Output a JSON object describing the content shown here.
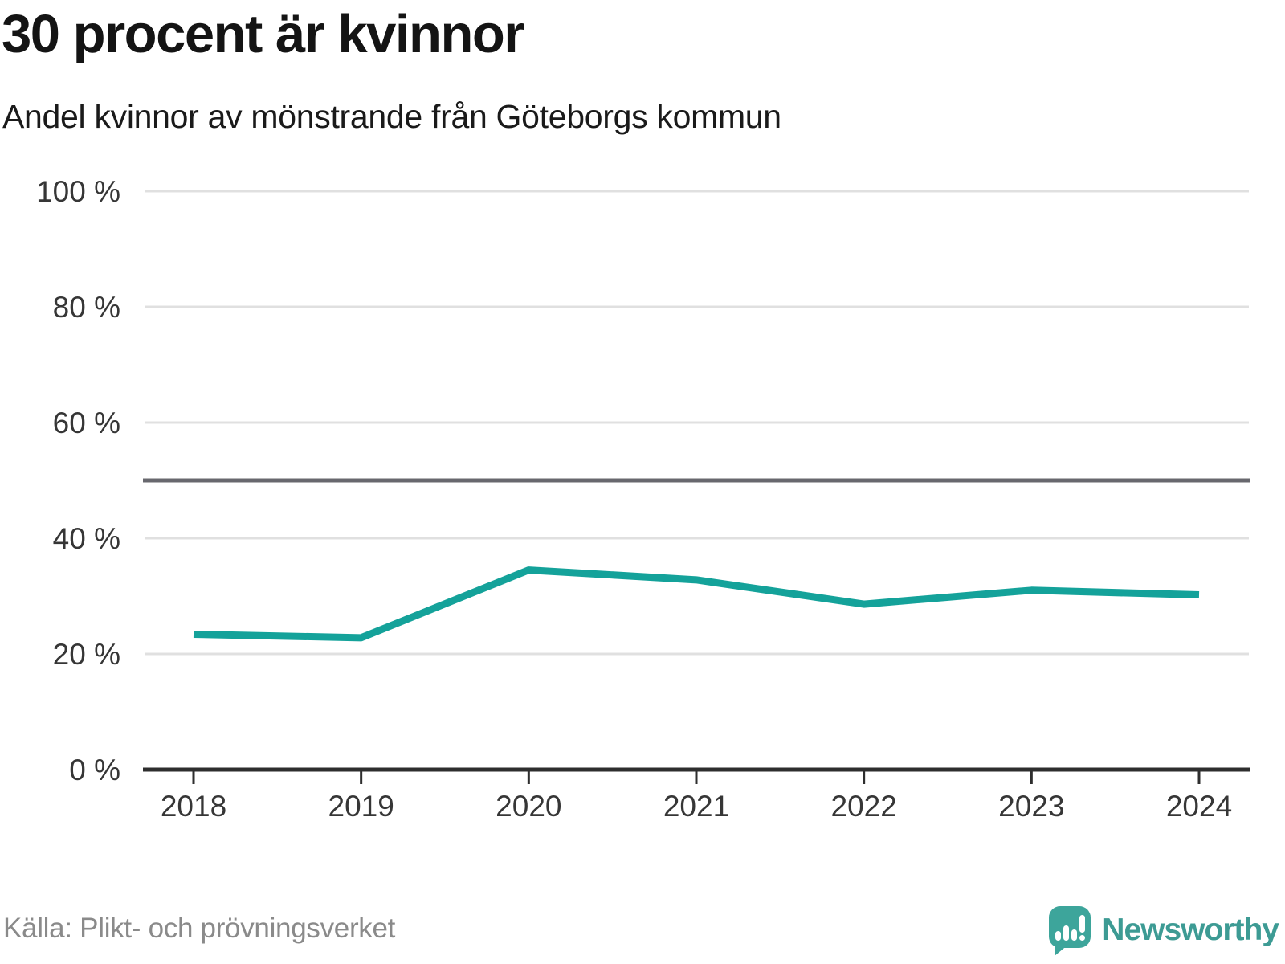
{
  "title": "30 procent är kvinnor",
  "subtitle": "Andel kvinnor av mönstrande från Göteborgs kommun",
  "footer": {
    "source": "Källa: Plikt- och prövningsverket",
    "brand": "Newsworthy"
  },
  "colors": {
    "line": "#14a29a",
    "reference_line": "#68686e",
    "grid": "#e0e0e0",
    "axis": "#2e2e2e",
    "tick_text": "#363636",
    "title_text": "#141414",
    "subtitle_text": "#1a1a1a",
    "source_text": "#8a8a8a",
    "brand_teal": "#3d9b94",
    "brand_icon": "#3da59b"
  },
  "chart_data": {
    "type": "line",
    "title": "30 procent är kvinnor",
    "subtitle": "Andel kvinnor av mönstrande från Göteborgs kommun",
    "x": [
      2018,
      2019,
      2020,
      2021,
      2022,
      2023,
      2024
    ],
    "series": [
      {
        "name": "Andel kvinnor",
        "color": "#14a29a",
        "values": [
          23.4,
          22.8,
          34.5,
          32.8,
          28.6,
          31.0,
          30.2
        ]
      }
    ],
    "ylim": [
      0,
      100
    ],
    "yticks": [
      0,
      20,
      40,
      60,
      80,
      100
    ],
    "ytick_suffix": " %",
    "reference_line": 50,
    "grid": true,
    "legend": false,
    "source": "Källa: Plikt- och prövningsverket"
  }
}
